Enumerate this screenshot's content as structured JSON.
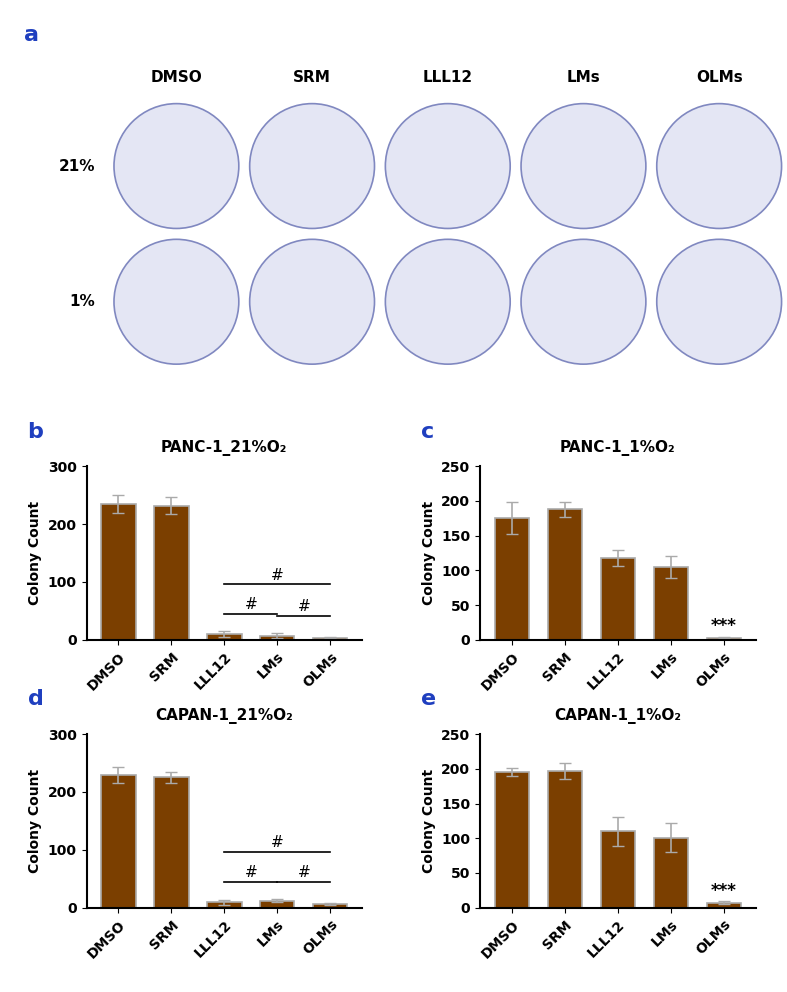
{
  "image_panel": {
    "label": "a",
    "columns": [
      "DMSO",
      "SRM",
      "LLL12",
      "LMs",
      "OLMs"
    ],
    "rows": [
      "21%",
      "1%"
    ]
  },
  "chart_data": [
    {
      "type": "bar",
      "label": "b",
      "title": "PANC-1_21%O₂",
      "y_label": "Colony Count",
      "categories": [
        "DMSO",
        "SRM",
        "LLL12",
        "LMs",
        "OLMs"
      ],
      "values": [
        235,
        232,
        10,
        7,
        4
      ],
      "errors": [
        15,
        15,
        5,
        4,
        1
      ],
      "color": "#7b3f00",
      "ylim": [
        0,
        300
      ],
      "yticks": [
        0,
        100,
        200,
        300
      ],
      "brackets": [
        {
          "from": "LLL12",
          "to": "OLMs",
          "text": "#"
        },
        {
          "from": "LLL12",
          "to": "LMs",
          "text": "#"
        },
        {
          "from": "LMs",
          "to": "OLMs",
          "text": "#"
        }
      ]
    },
    {
      "type": "bar",
      "label": "c",
      "title": "PANC-1_1%O₂",
      "y_label": "Colony Count",
      "categories": [
        "DMSO",
        "SRM",
        "LLL12",
        "LMs",
        "OLMs"
      ],
      "values": [
        175,
        188,
        118,
        105,
        3
      ],
      "errors": [
        23,
        11,
        12,
        16,
        1
      ],
      "color": "#7b3f00",
      "ylim": [
        0,
        250
      ],
      "yticks": [
        0,
        50,
        100,
        150,
        200,
        250
      ],
      "annotations": [
        {
          "category": "OLMs",
          "text": "***"
        }
      ]
    },
    {
      "type": "bar",
      "label": "d",
      "title": "CAPAN-1_21%O₂",
      "y_label": "Colony Count",
      "categories": [
        "DMSO",
        "SRM",
        "LLL12",
        "LMs",
        "OLMs"
      ],
      "values": [
        229,
        225,
        9,
        12,
        6
      ],
      "errors": [
        14,
        10,
        4,
        3,
        2
      ],
      "color": "#7b3f00",
      "ylim": [
        0,
        300
      ],
      "yticks": [
        0,
        100,
        200,
        300
      ],
      "brackets": [
        {
          "from": "LLL12",
          "to": "OLMs",
          "text": "#"
        },
        {
          "from": "LLL12",
          "to": "LMs",
          "text": "#"
        },
        {
          "from": "LMs",
          "to": "OLMs",
          "text": "#"
        }
      ]
    },
    {
      "type": "bar",
      "label": "e",
      "title": "CAPAN-1_1%O₂",
      "y_label": "Colony Count",
      "categories": [
        "DMSO",
        "SRM",
        "LLL12",
        "LMs",
        "OLMs"
      ],
      "values": [
        195,
        197,
        110,
        101,
        7
      ],
      "errors": [
        6,
        11,
        21,
        21,
        2
      ],
      "color": "#7b3f00",
      "ylim": [
        0,
        250
      ],
      "yticks": [
        0,
        50,
        100,
        150,
        200,
        250
      ],
      "annotations": [
        {
          "category": "OLMs",
          "text": "***"
        }
      ]
    }
  ]
}
